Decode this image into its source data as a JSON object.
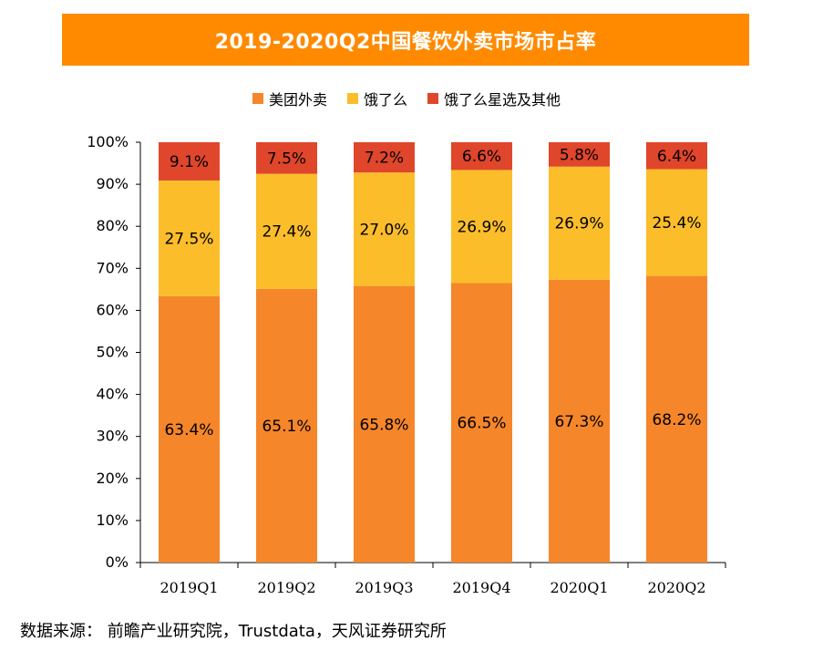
{
  "chart_data": {
    "type": "bar",
    "stacked": true,
    "title": "2019-2020Q2中国餐饮外卖市场市占率",
    "categories": [
      "2019Q1",
      "2019Q2",
      "2019Q3",
      "2019Q4",
      "2020Q1",
      "2020Q2"
    ],
    "series": [
      {
        "name": "美团外卖",
        "color": "#f5862a",
        "values": [
          63.4,
          65.1,
          65.8,
          66.5,
          67.3,
          68.2
        ],
        "labels": [
          "63.4%",
          "65.1%",
          "65.8%",
          "66.5%",
          "67.3%",
          "68.2%"
        ]
      },
      {
        "name": "饿了么",
        "color": "#fbbd2a",
        "values": [
          27.5,
          27.4,
          27.0,
          26.9,
          26.9,
          25.4
        ],
        "labels": [
          "27.5%",
          "27.4%",
          "27.0%",
          "26.9%",
          "26.9%",
          "25.4%"
        ]
      },
      {
        "name": "饿了么星选及其他",
        "color": "#e0462b",
        "values": [
          9.1,
          7.5,
          7.2,
          6.6,
          5.8,
          6.4
        ],
        "labels": [
          "9.1%",
          "7.5%",
          "7.2%",
          "6.6%",
          "5.8%",
          "6.4%"
        ]
      }
    ],
    "ylim": [
      0,
      100
    ],
    "yticks": [
      "0%",
      "10%",
      "20%",
      "30%",
      "40%",
      "50%",
      "60%",
      "70%",
      "80%",
      "90%",
      "100%"
    ],
    "xlabel": "",
    "ylabel": "",
    "legend": "top-center"
  },
  "source": "数据来源： 前瞻产业研究院，Trustdata，天风证券研究所"
}
